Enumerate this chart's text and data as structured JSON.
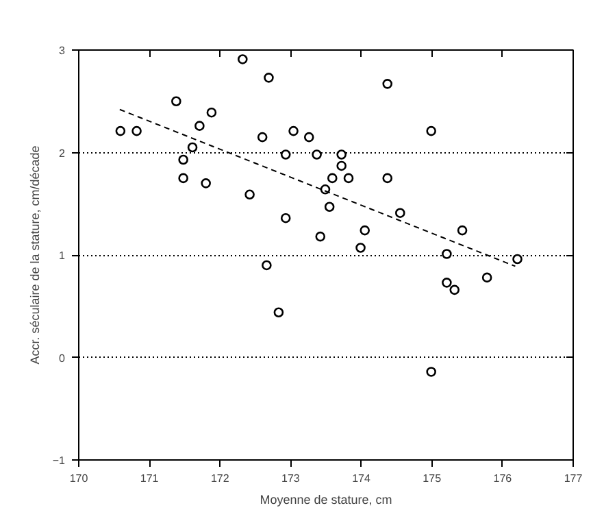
{
  "chart_data": {
    "type": "scatter",
    "xlabel": "Moyenne de stature, cm",
    "ylabel": "Accr. séculaire de la stature, cm/décade",
    "xlim": [
      170,
      177
    ],
    "ylim": [
      -1,
      3
    ],
    "xticks": [
      170,
      171,
      172,
      173,
      174,
      175,
      176,
      177
    ],
    "yticks": [
      -1,
      0,
      1,
      2,
      3
    ],
    "grid": "y",
    "series": [
      {
        "marker": "circle",
        "color": "#000000",
        "x": [
          172.32,
          171.38,
          171.88,
          171.71,
          170.59,
          170.82,
          171.61,
          171.48,
          171.48,
          171.8,
          172.42,
          172.69,
          174.37,
          172.6,
          173.04,
          173.26,
          174.99,
          172.93,
          173.37,
          173.72,
          173.72,
          173.59,
          173.82,
          174.37,
          173.49,
          173.55,
          174.55,
          172.93,
          174.05,
          173.42,
          173.99,
          175.43,
          175.21,
          176.21,
          175.78,
          175.21,
          175.32,
          174.99,
          172.66,
          172.83
        ],
        "values": [
          2.91,
          2.5,
          2.39,
          2.26,
          2.21,
          2.21,
          2.05,
          1.93,
          1.75,
          1.7,
          1.59,
          2.73,
          2.67,
          2.15,
          2.21,
          2.15,
          2.21,
          1.98,
          1.98,
          1.98,
          1.87,
          1.75,
          1.75,
          1.75,
          1.64,
          1.47,
          1.41,
          1.36,
          1.24,
          1.18,
          1.07,
          1.24,
          1.01,
          0.96,
          0.78,
          0.73,
          0.66,
          -0.14,
          0.9,
          0.44
        ]
      },
      {
        "type": "line",
        "color": "#000000",
        "line_style": "dashed",
        "x": [
          170.58,
          176.18
        ],
        "values": [
          2.42,
          0.89
        ]
      }
    ]
  }
}
